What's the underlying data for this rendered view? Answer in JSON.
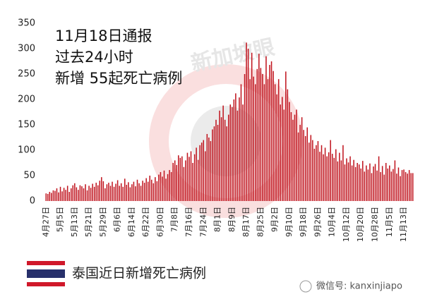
{
  "chart_data": {
    "type": "bar",
    "title_lines": [
      "11月18日通报",
      "过去24小时",
      "新增 55起死亡病例"
    ],
    "legend_label": "泰国近日新增死亡病例",
    "watermark": "新加坡眼",
    "footer": "微信号: kanxinjiapo",
    "color": "#c0141e",
    "ylim": [
      0,
      350
    ],
    "yticks": [
      0,
      50,
      100,
      150,
      200,
      250,
      300,
      350
    ],
    "grid": false,
    "categories": [
      "4月27日",
      null,
      null,
      null,
      null,
      null,
      null,
      null,
      "5月5日",
      null,
      null,
      null,
      null,
      null,
      null,
      null,
      "5月13日",
      null,
      null,
      null,
      null,
      null,
      null,
      null,
      "5月21日",
      null,
      null,
      null,
      null,
      null,
      null,
      null,
      "5月29日",
      null,
      null,
      null,
      null,
      null,
      null,
      null,
      "6月6日",
      null,
      null,
      null,
      null,
      null,
      null,
      null,
      "6月14日",
      null,
      null,
      null,
      null,
      null,
      null,
      null,
      "6月22日",
      null,
      null,
      null,
      null,
      null,
      null,
      null,
      "6月30日",
      null,
      null,
      null,
      null,
      null,
      null,
      null,
      "7月8日",
      null,
      null,
      null,
      null,
      null,
      null,
      null,
      "7月16日",
      null,
      null,
      null,
      null,
      null,
      null,
      null,
      "7月24日",
      null,
      null,
      null,
      null,
      null,
      null,
      null,
      "8月1日",
      null,
      null,
      null,
      null,
      null,
      null,
      null,
      "8月9日",
      null,
      null,
      null,
      null,
      null,
      null,
      null,
      "8月17日",
      null,
      null,
      null,
      null,
      null,
      null,
      null,
      "8月25日",
      null,
      null,
      null,
      null,
      null,
      null,
      null,
      "9月2日",
      null,
      null,
      null,
      null,
      null,
      null,
      null,
      "9月10日",
      null,
      null,
      null,
      null,
      null,
      null,
      null,
      "9月18日",
      null,
      null,
      null,
      null,
      null,
      null,
      null,
      "9月26日",
      null,
      null,
      null,
      null,
      null,
      null,
      null,
      "10月4日",
      null,
      null,
      null,
      null,
      null,
      null,
      null,
      "10月12日",
      null,
      null,
      null,
      null,
      null,
      null,
      null,
      "10月20日",
      null,
      null,
      null,
      null,
      null,
      null,
      null,
      "10月28日",
      null,
      null,
      null,
      null,
      null,
      null,
      null,
      "11月5日",
      null,
      null,
      null,
      null,
      null,
      null,
      null,
      "11月13日",
      null,
      null,
      null,
      null,
      null
    ],
    "values": [
      15,
      14,
      18,
      16,
      21,
      20,
      25,
      17,
      28,
      19,
      26,
      22,
      30,
      18,
      25,
      31,
      35,
      27,
      22,
      31,
      29,
      25,
      33,
      21,
      30,
      26,
      34,
      28,
      36,
      31,
      40,
      47,
      39,
      25,
      33,
      36,
      30,
      38,
      28,
      34,
      41,
      30,
      35,
      28,
      44,
      32,
      37,
      27,
      33,
      38,
      29,
      42,
      35,
      30,
      40,
      36,
      45,
      38,
      50,
      42,
      35,
      47,
      39,
      52,
      57,
      48,
      60,
      44,
      53,
      61,
      57,
      75,
      80,
      71,
      90,
      85,
      88,
      67,
      80,
      95,
      87,
      98,
      75,
      92,
      105,
      81,
      110,
      115,
      120,
      98,
      132,
      125,
      118,
      141,
      147,
      160,
      150,
      178,
      165,
      188,
      160,
      147,
      170,
      190,
      185,
      200,
      212,
      178,
      204,
      230,
      190,
      250,
      312,
      300,
      240,
      292,
      245,
      230,
      260,
      290,
      262,
      250,
      230,
      285,
      240,
      268,
      275,
      256,
      230,
      210,
      240,
      190,
      205,
      180,
      255,
      220,
      195,
      175,
      160,
      170,
      180,
      135,
      150,
      165,
      140,
      128,
      145,
      115,
      130,
      120,
      103,
      110,
      118,
      97,
      110,
      92,
      105,
      88,
      96,
      120,
      93,
      85,
      102,
      78,
      95,
      80,
      110,
      72,
      84,
      76,
      88,
      70,
      81,
      67,
      75,
      72,
      64,
      79,
      58,
      70,
      62,
      74,
      55,
      68,
      73,
      60,
      88,
      57,
      69,
      52,
      75,
      64,
      70,
      58,
      63,
      80,
      54,
      66,
      49,
      61,
      62,
      57,
      54,
      61,
      55,
      55
    ]
  }
}
